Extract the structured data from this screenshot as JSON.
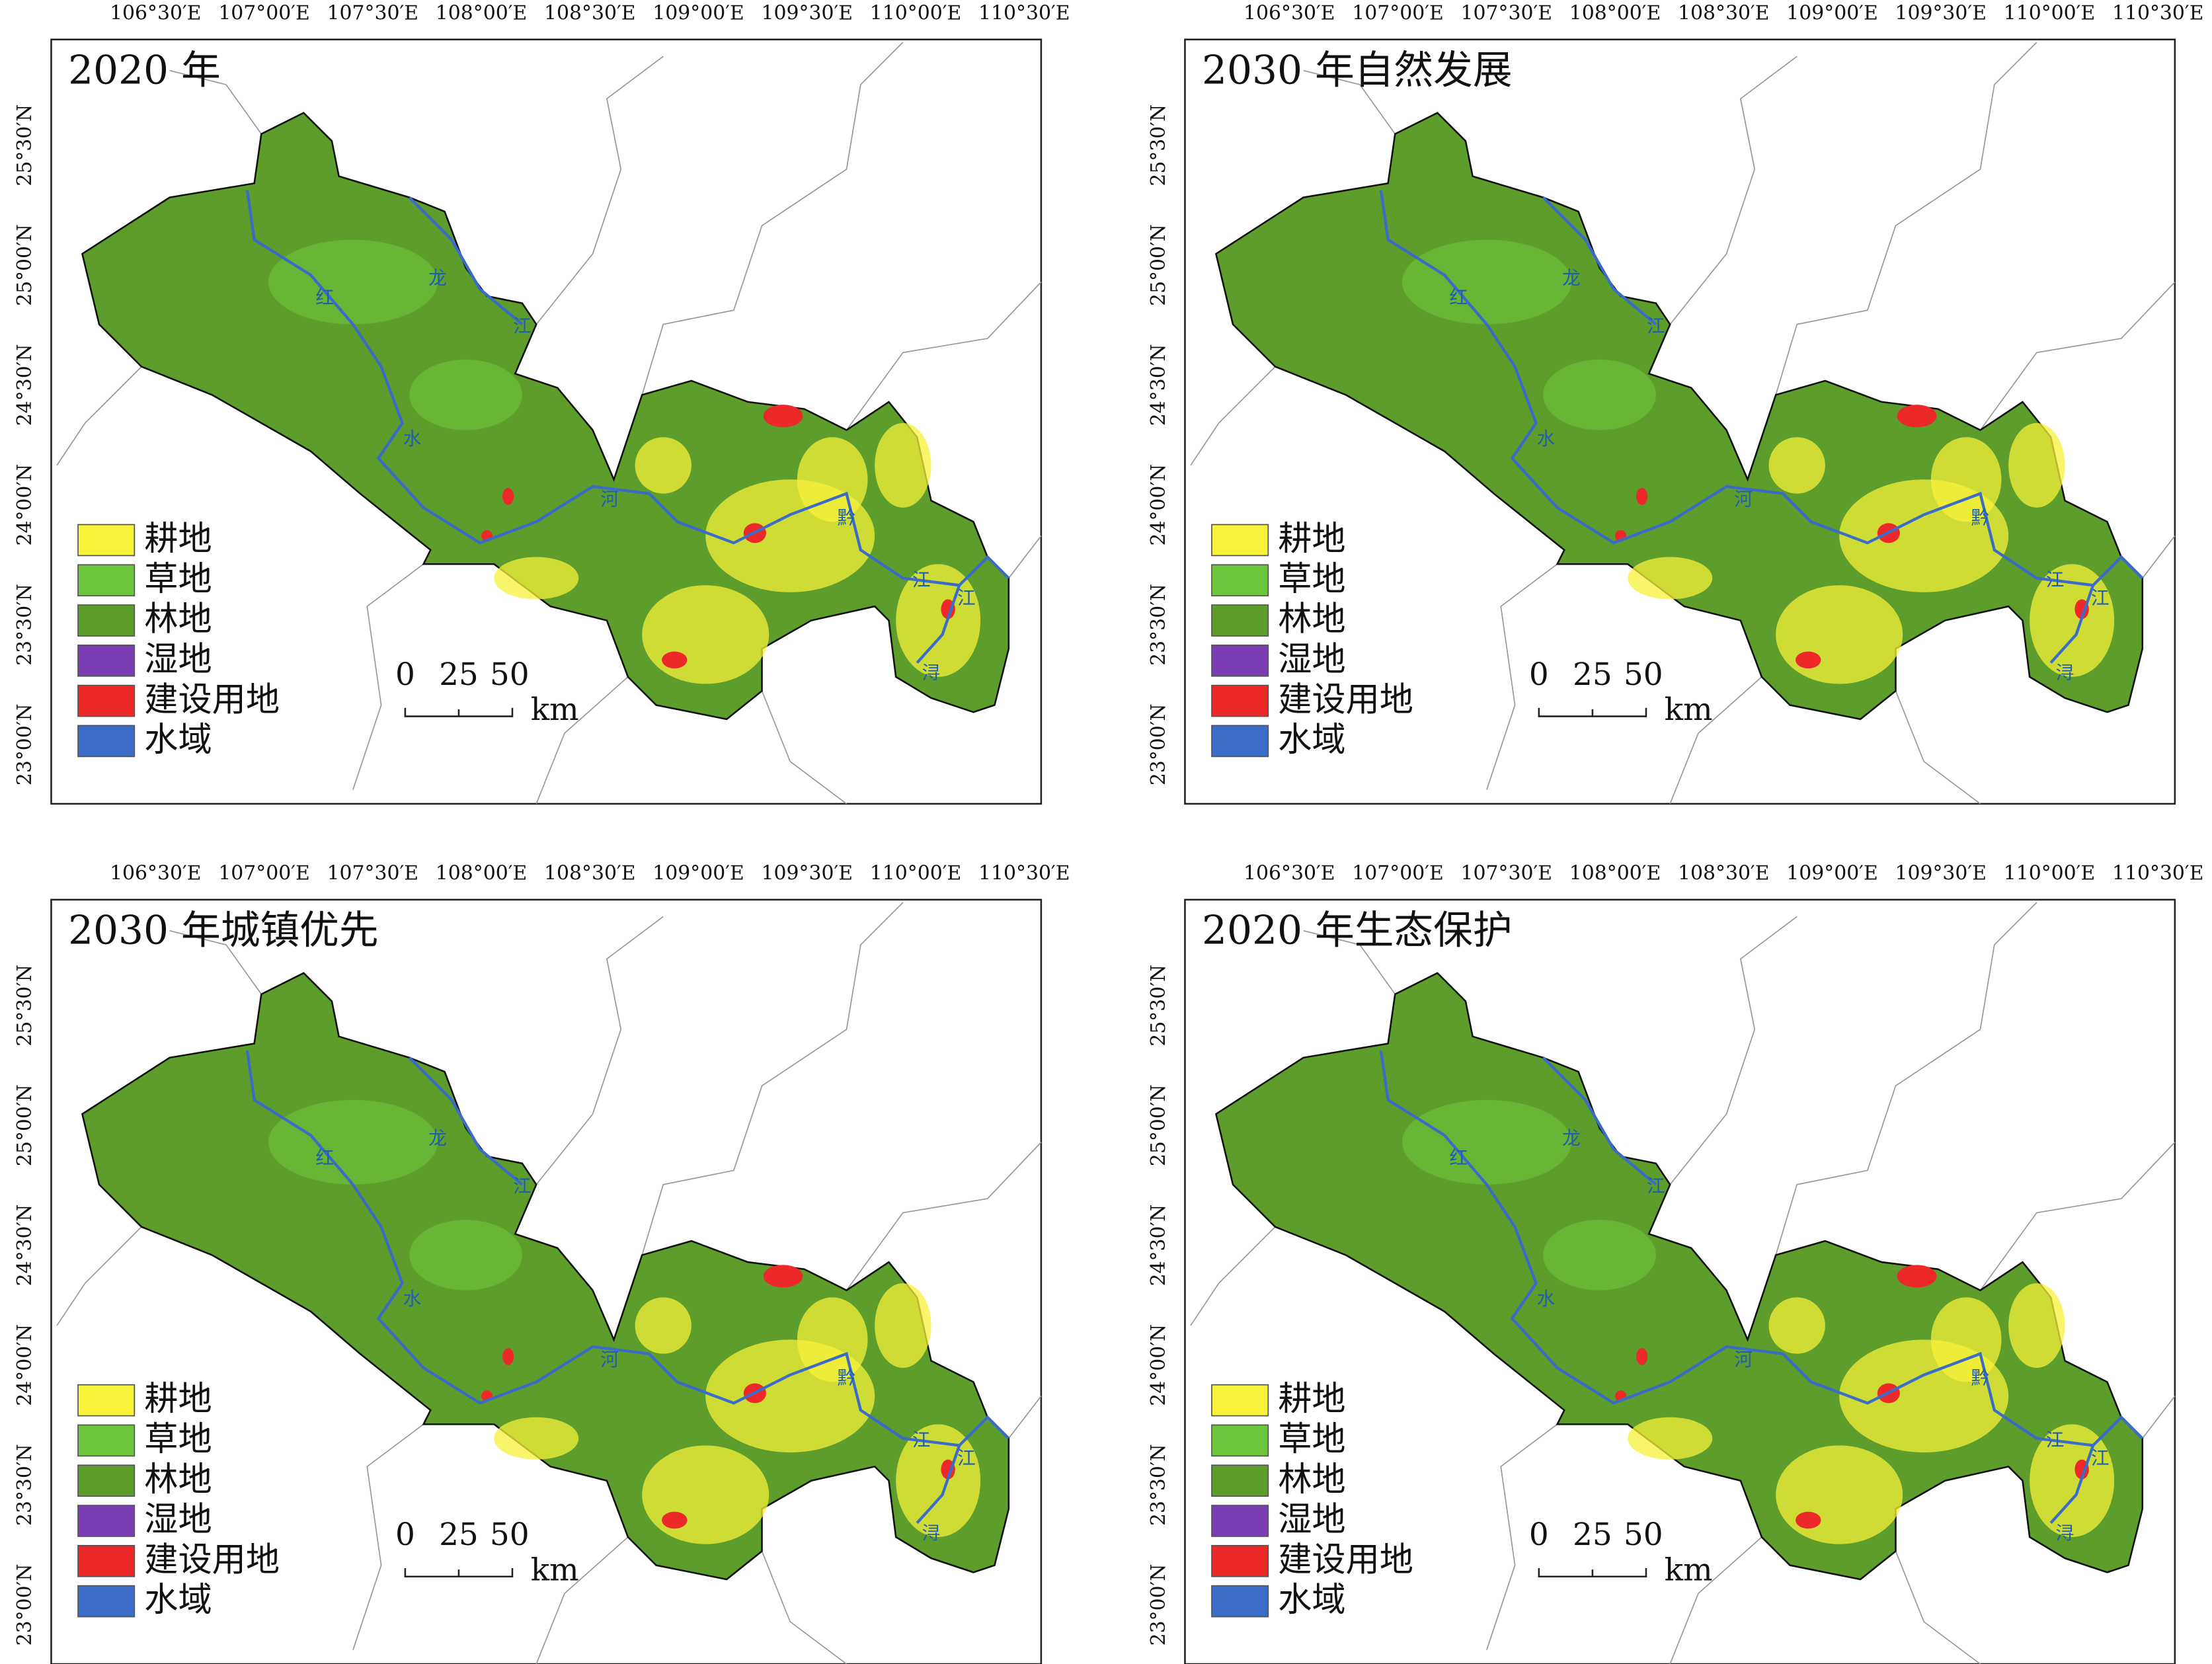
{
  "panels": [
    {
      "title": "2020 年"
    },
    {
      "title": "2030 年自然发展"
    },
    {
      "title": "2030 年城镇优先"
    },
    {
      "title": "2020 年生态保护"
    }
  ],
  "x_ticks": [
    "106°30′E",
    "107°00′E",
    "107°30′E",
    "108°00′E",
    "108°30′E",
    "109°00′E",
    "109°30′E",
    "110°00′E",
    "110°30′E"
  ],
  "y_ticks": [
    "25°30′N",
    "25°00′N",
    "24°30′N",
    "24°00′N",
    "23°30′N",
    "23°00′N"
  ],
  "legend": [
    {
      "label": "耕地",
      "color": "#f7f23a"
    },
    {
      "label": "草地",
      "color": "#6cc53a"
    },
    {
      "label": "林地",
      "color": "#5c9d2c"
    },
    {
      "label": "湿地",
      "color": "#7a3db2"
    },
    {
      "label": "建设用地",
      "color": "#ec2828"
    },
    {
      "label": "水域",
      "color": "#3a6cc8"
    }
  ],
  "scale_bar": {
    "labels": [
      "0",
      "25",
      "50"
    ],
    "unit": "km"
  },
  "river_labels": [
    "红",
    "水",
    "河",
    "黔",
    "江",
    "江",
    "浔",
    "龙",
    "江"
  ]
}
